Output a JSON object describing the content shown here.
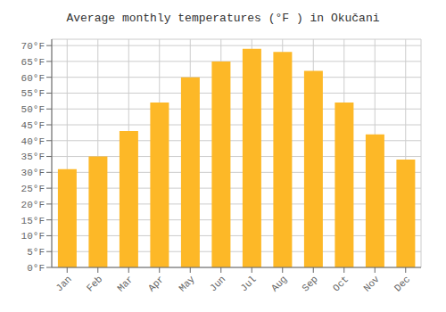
{
  "chart_data": {
    "type": "bar",
    "title": "Average monthly temperatures (°F ) in Okučani",
    "categories": [
      "Jan",
      "Feb",
      "Mar",
      "Apr",
      "May",
      "Jun",
      "Jul",
      "Aug",
      "Sep",
      "Oct",
      "Nov",
      "Dec"
    ],
    "values": [
      31,
      35,
      43,
      52,
      60,
      65,
      69,
      68,
      62,
      52,
      42,
      34
    ],
    "color": "#FDB827",
    "ylim": [
      0,
      72
    ],
    "yticks": [
      {
        "value": 0,
        "label": "0°F"
      },
      {
        "value": 5,
        "label": "5°F"
      },
      {
        "value": 10,
        "label": "10°F"
      },
      {
        "value": 15,
        "label": "15°F"
      },
      {
        "value": 20,
        "label": "20°F"
      },
      {
        "value": 25,
        "label": "25°F"
      },
      {
        "value": 30,
        "label": "30°F"
      },
      {
        "value": 35,
        "label": "35°F"
      },
      {
        "value": 40,
        "label": "40°F"
      },
      {
        "value": 45,
        "label": "45°F"
      },
      {
        "value": 50,
        "label": "50°F"
      },
      {
        "value": 55,
        "label": "55°F"
      },
      {
        "value": 60,
        "label": "60°F"
      },
      {
        "value": 65,
        "label": "65°F"
      },
      {
        "value": 70,
        "label": "70°F"
      }
    ],
    "grid": true
  }
}
